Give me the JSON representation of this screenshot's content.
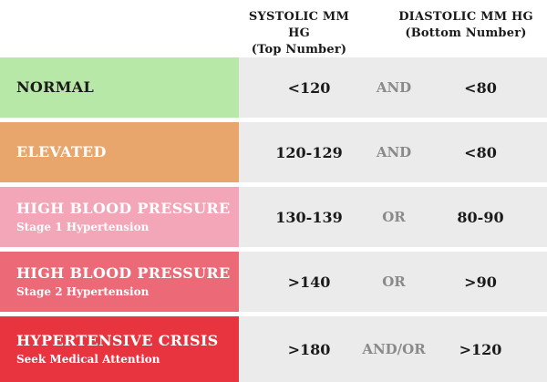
{
  "header": {
    "systolic_title": "SYSTOLIC MM HG",
    "systolic_sub": "(Top Number)",
    "diastolic_title": "DIASTOLIC MM HG",
    "diastolic_sub": "(Bottom Number)"
  },
  "rows": [
    {
      "name": "NORMAL",
      "sub": "",
      "systolic": "<120",
      "conj": "AND",
      "diastolic": "<80",
      "color": "#b8e8a8",
      "text_color": "#1a1a1a"
    },
    {
      "name": "ELEVATED",
      "sub": "",
      "systolic": "120-129",
      "conj": "AND",
      "diastolic": "<80",
      "color": "#e8a66c",
      "text_color": "#ffffff"
    },
    {
      "name": "HIGH BLOOD PRESSURE",
      "sub": "Stage 1 Hypertension",
      "systolic": "130-139",
      "conj": "OR",
      "diastolic": "80-90",
      "color": "#f2a6b8",
      "text_color": "#ffffff"
    },
    {
      "name": "HIGH BLOOD PRESSURE",
      "sub": "Stage 2 Hypertension",
      "systolic": ">140",
      "conj": "OR",
      "diastolic": ">90",
      "color": "#ec6a78",
      "text_color": "#ffffff"
    },
    {
      "name": "HYPERTENSIVE CRISIS",
      "sub": "Seek Medical Attention",
      "systolic": ">180",
      "conj": "AND/OR",
      "diastolic": ">120",
      "color": "#e8343e",
      "text_color": "#ffffff"
    }
  ]
}
